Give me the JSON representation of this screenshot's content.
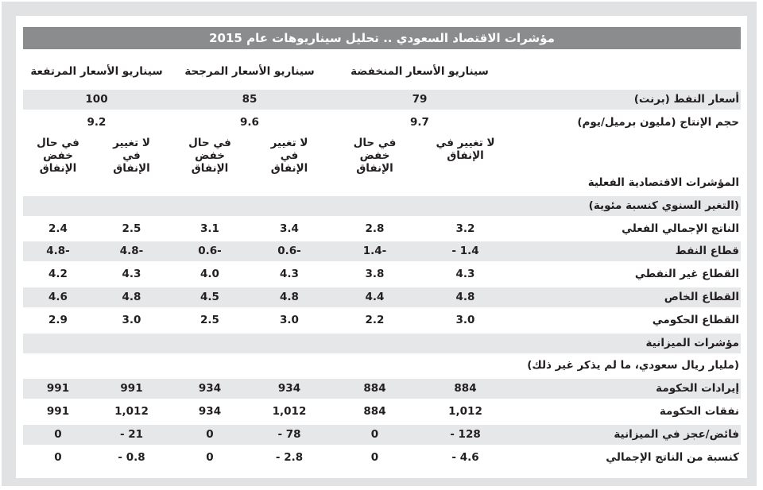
{
  "title": "مؤشرات الاقتصاد السعودي .. تحليل سيناريوهات عام 2015",
  "scenario_headers": [
    "سيناريو  الأسعار المنخفضة",
    "سيناريو الأسعار المرجحة",
    "سيناريو الأسعار المرتفعة"
  ],
  "scenario_rows": [
    {
      "label": "أسعار النفط (برنت)",
      "values": [
        79,
        85,
        100
      ]
    },
    {
      "label": "حجم الإنتاج (مليون برميل/يوم)",
      "values": [
        9.7,
        9.6,
        9.2
      ]
    }
  ],
  "spending_headers": [
    "لا تغيير في الإنفاق",
    "في حال خفض الإنفاق",
    "لا تغيير في الإنفاق",
    "في حال خفض الإنفاق",
    "لا تغيير في الإنفاق",
    "في حال خفض الإنفاق"
  ],
  "rows": [
    {
      "label": "المؤشرات الاقتصادية الفعلية"
    },
    {
      "label": "(التغير السنوي كنسبة مئوية)"
    },
    {
      "label": "الناتج الإجمالي الفعلي",
      "values": [
        "3.2",
        "2.8",
        "3.4",
        "3.1",
        "2.5",
        "2.4"
      ]
    },
    {
      "label": "قطاع النفط",
      "values": [
        "- 1.4",
        "1.4-",
        "0.6-",
        "0.6-",
        "4.8-",
        "4.8-"
      ]
    },
    {
      "label": "القطاع غير النفطي",
      "values": [
        "4.3",
        "3.8",
        "4.3",
        "4.0",
        "4.3",
        "4.2"
      ]
    },
    {
      "label": "القطاع الخاص",
      "values": [
        "4.8",
        "4.4",
        "4.8",
        "4.5",
        "4.8",
        "4.6"
      ]
    },
    {
      "label": "القطاع الحكومي",
      "values": [
        "3.0",
        "2.2",
        "3.0",
        "2.5",
        "3.0",
        "2.9"
      ]
    },
    {
      "label": "مؤشرات الميزانية"
    },
    {
      "label": "(مليار ريال سعودي، ما لم يذكر غير ذلك)"
    },
    {
      "label": "إيرادات الحكومة",
      "values": [
        "884",
        "884",
        "934",
        "934",
        "991",
        "991"
      ]
    },
    {
      "label": "نفقات الحكومة",
      "values": [
        "1,012",
        "884",
        "1,012",
        "934",
        "1,012",
        "991"
      ]
    },
    {
      "label": "فائض/عجز في الميزانية",
      "values": [
        "- 128",
        "0",
        "- 78",
        "0",
        "- 21",
        "0"
      ]
    },
    {
      "label": "كنسبة من الناتج الإجمالي",
      "values": [
        "- 4.6",
        "0",
        "- 2.8",
        "0",
        "- 0.8",
        "0"
      ]
    }
  ]
}
